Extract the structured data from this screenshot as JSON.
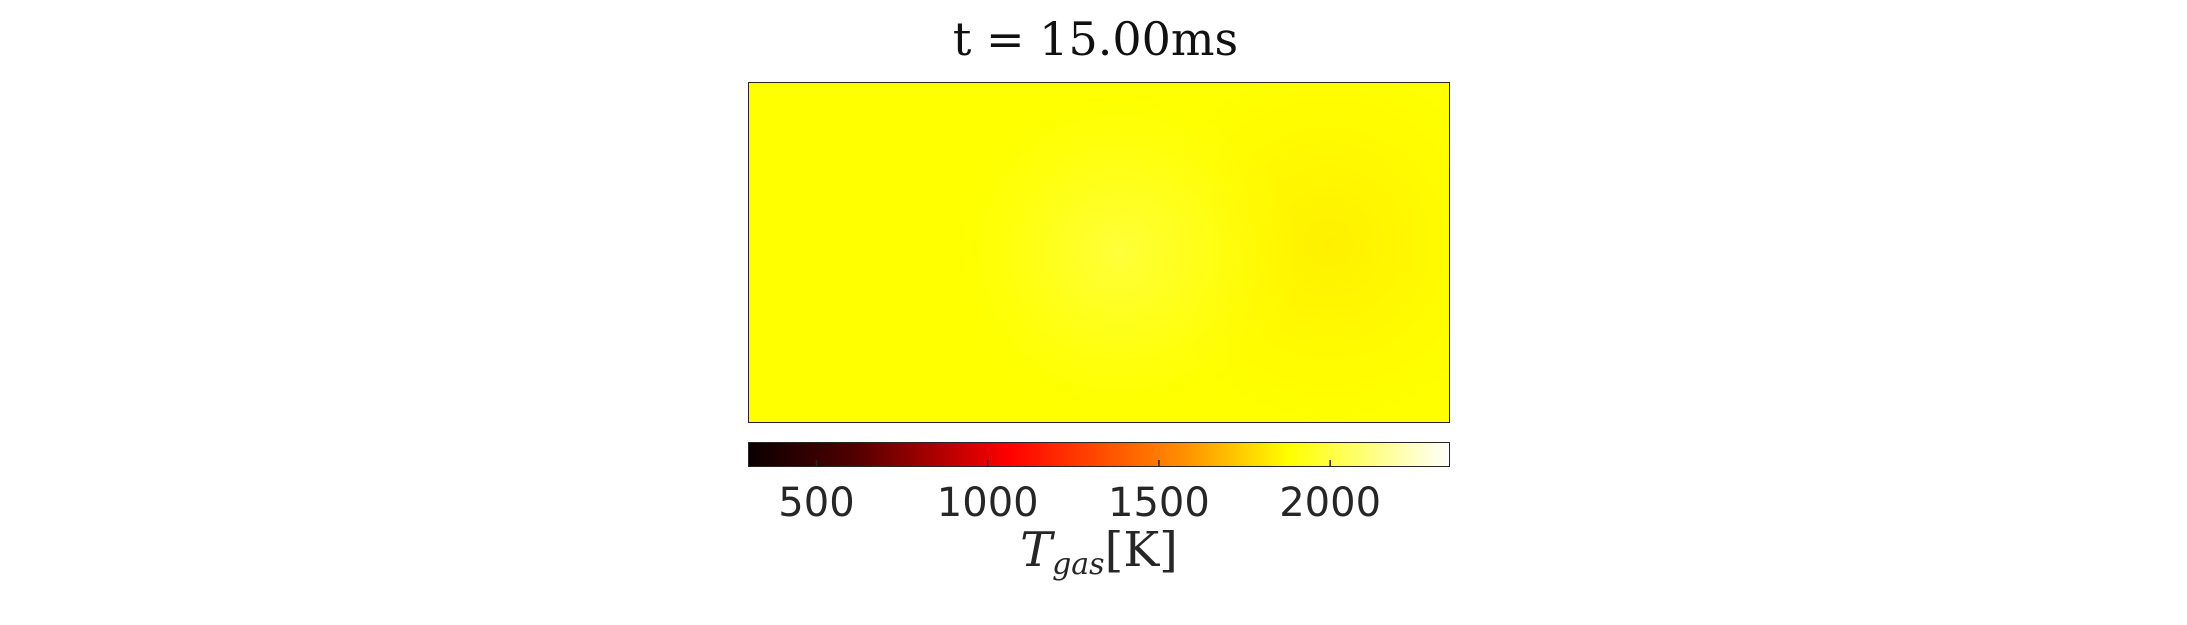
{
  "chart_data": {
    "type": "heatmap",
    "title": "t = 15.00ms",
    "colorbar": {
      "label": {
        "symbol": "T",
        "subscript": "gas",
        "units": "[K]"
      },
      "range": [
        300,
        2350
      ],
      "ticks": [
        500,
        1000,
        1500,
        2000
      ],
      "colormap": "hot",
      "orientation": "horizontal",
      "placement": "bottom"
    },
    "field": {
      "description_values": {
        "background": 2150,
        "hotspot_center": 2230,
        "right_region": 2120
      }
    },
    "axes_visible": false,
    "grid": false
  }
}
